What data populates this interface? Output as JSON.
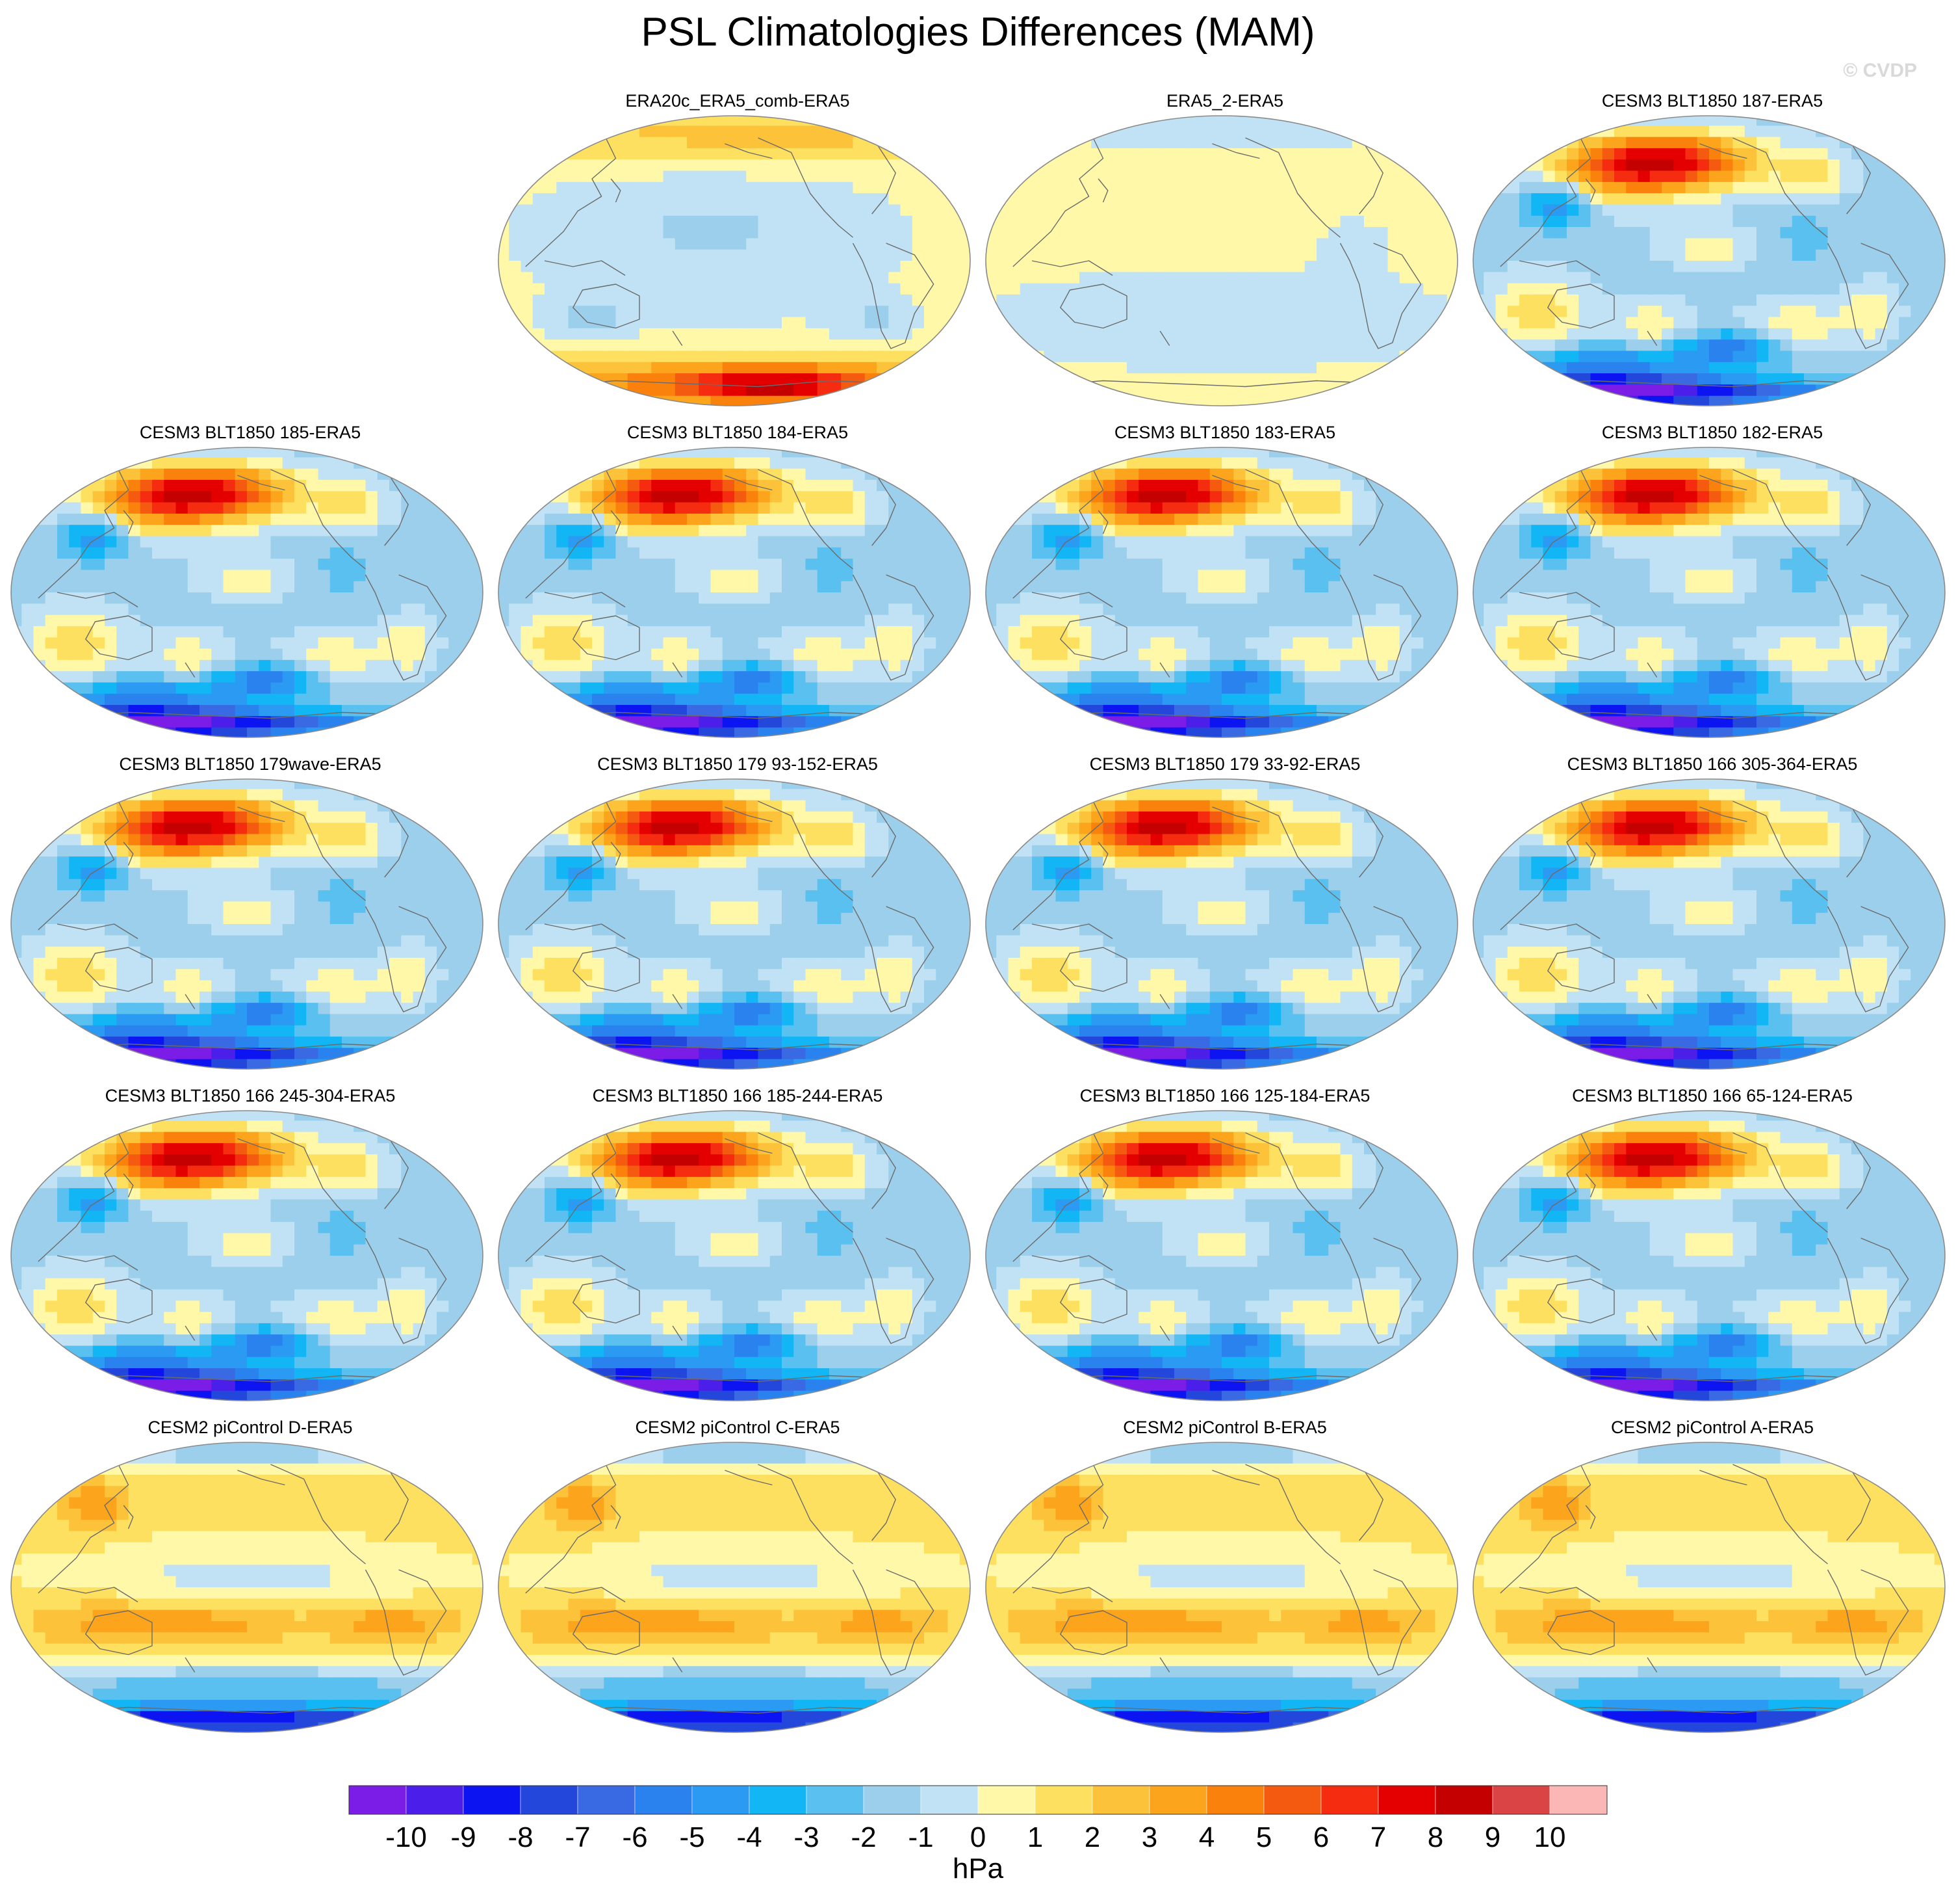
{
  "title": "PSL Climatologies Differences (MAM)",
  "watermark": "© CVDP",
  "chart_data": {
    "type": "heatmap",
    "title": "PSL Climatologies Differences (MAM)",
    "projection": "Robinson global maps (Pacific-centered)",
    "colorbar": {
      "label": "hPa",
      "tick_labels": [
        "-10",
        "-9",
        "-8",
        "-7",
        "-6",
        "-5",
        "-4",
        "-3",
        "-2",
        "-1",
        "0",
        "1",
        "2",
        "3",
        "4",
        "5",
        "6",
        "7",
        "8",
        "9",
        "10"
      ],
      "colors": [
        "#7b1de6",
        "#4b1eea",
        "#0c14f2",
        "#2346db",
        "#3a6ae3",
        "#2a82ee",
        "#2a9af2",
        "#13b6f4",
        "#5ac0ef",
        "#9ccfeb",
        "#c0e2f4",
        "#fff8a8",
        "#fde060",
        "#fcc23a",
        "#fba41c",
        "#fa820c",
        "#f45a10",
        "#f52c10",
        "#e50000",
        "#c40000",
        "#db4444",
        "#fbb6b6"
      ]
    },
    "panels": [
      {
        "title": "ERA20c_ERA5_comb-ERA5",
        "pattern": "era20c"
      },
      {
        "title": "ERA5_2-ERA5",
        "pattern": "era5"
      },
      {
        "title": "CESM3 BLT1850 187-ERA5",
        "pattern": "cesm3"
      },
      {
        "title": "CESM3 BLT1850 185-ERA5",
        "pattern": "cesm3"
      },
      {
        "title": "CESM3 BLT1850 184-ERA5",
        "pattern": "cesm3"
      },
      {
        "title": "CESM3 BLT1850 183-ERA5",
        "pattern": "cesm3"
      },
      {
        "title": "CESM3 BLT1850 182-ERA5",
        "pattern": "cesm3"
      },
      {
        "title": "CESM3 BLT1850 179wave-ERA5",
        "pattern": "cesm3"
      },
      {
        "title": "CESM3 BLT1850 179 93-152-ERA5",
        "pattern": "cesm3"
      },
      {
        "title": "CESM3 BLT1850 179 33-92-ERA5",
        "pattern": "cesm3"
      },
      {
        "title": "CESM3 BLT1850 166 305-364-ERA5",
        "pattern": "cesm3"
      },
      {
        "title": "CESM3 BLT1850 166 245-304-ERA5",
        "pattern": "cesm3"
      },
      {
        "title": "CESM3 BLT1850 166 185-244-ERA5",
        "pattern": "cesm3"
      },
      {
        "title": "CESM3 BLT1850 166 125-184-ERA5",
        "pattern": "cesm3"
      },
      {
        "title": "CESM3 BLT1850 166 65-124-ERA5",
        "pattern": "cesm3"
      },
      {
        "title": "CESM2 piControl D-ERA5",
        "pattern": "cesm2"
      },
      {
        "title": "CESM2 piControl C-ERA5",
        "pattern": "cesm2"
      },
      {
        "title": "CESM2 piControl B-ERA5",
        "pattern": "cesm2"
      },
      {
        "title": "CESM2 piControl A-ERA5",
        "pattern": "cesm2"
      }
    ]
  }
}
